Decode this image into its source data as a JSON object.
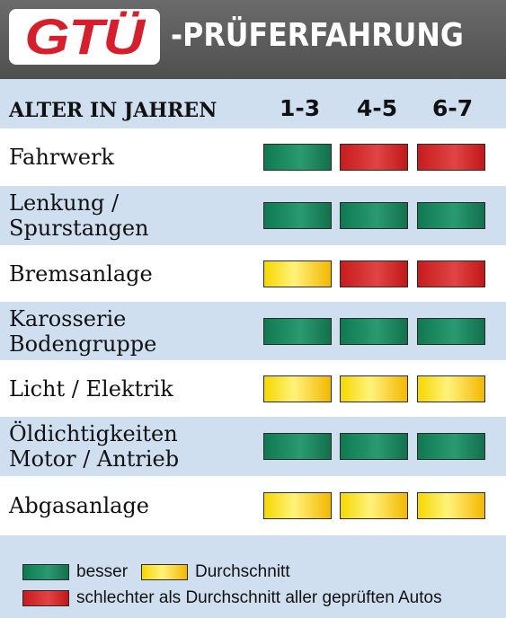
{
  "header": {
    "logo_text": "GTÜ",
    "title": "-PRÜFERFAHRUNG"
  },
  "table": {
    "age_label": "ALTER IN JAHREN",
    "columns": [
      "1-3",
      "4-5",
      "6-7"
    ],
    "rows": [
      {
        "label": "Fahrwerk",
        "ratings": [
          "green",
          "red",
          "red"
        ]
      },
      {
        "label": "Lenkung /\nSpurstangen",
        "ratings": [
          "green",
          "green",
          "green"
        ]
      },
      {
        "label": "Bremsanlage",
        "ratings": [
          "yellow",
          "red",
          "red"
        ]
      },
      {
        "label": "Karosserie\nBodengruppe",
        "ratings": [
          "green",
          "green",
          "green"
        ]
      },
      {
        "label": "Licht / Elektrik",
        "ratings": [
          "yellow",
          "yellow",
          "yellow"
        ]
      },
      {
        "label": "Öldichtigkeiten\nMotor / Antrieb",
        "ratings": [
          "green",
          "green",
          "green"
        ]
      },
      {
        "label": "Abgasanlage",
        "ratings": [
          "yellow",
          "yellow",
          "yellow"
        ]
      }
    ]
  },
  "legend": {
    "better": "besser",
    "average": "Durchschnitt",
    "worse": "schlechter als Durchschnitt aller geprüften Autos"
  },
  "colors": {
    "green": "#1a8a5e",
    "red": "#d42b2b",
    "yellow": "#f7df2a",
    "background": "#cfdff0",
    "header": "#5f5f5f",
    "logo_red": "#d81e2a"
  }
}
